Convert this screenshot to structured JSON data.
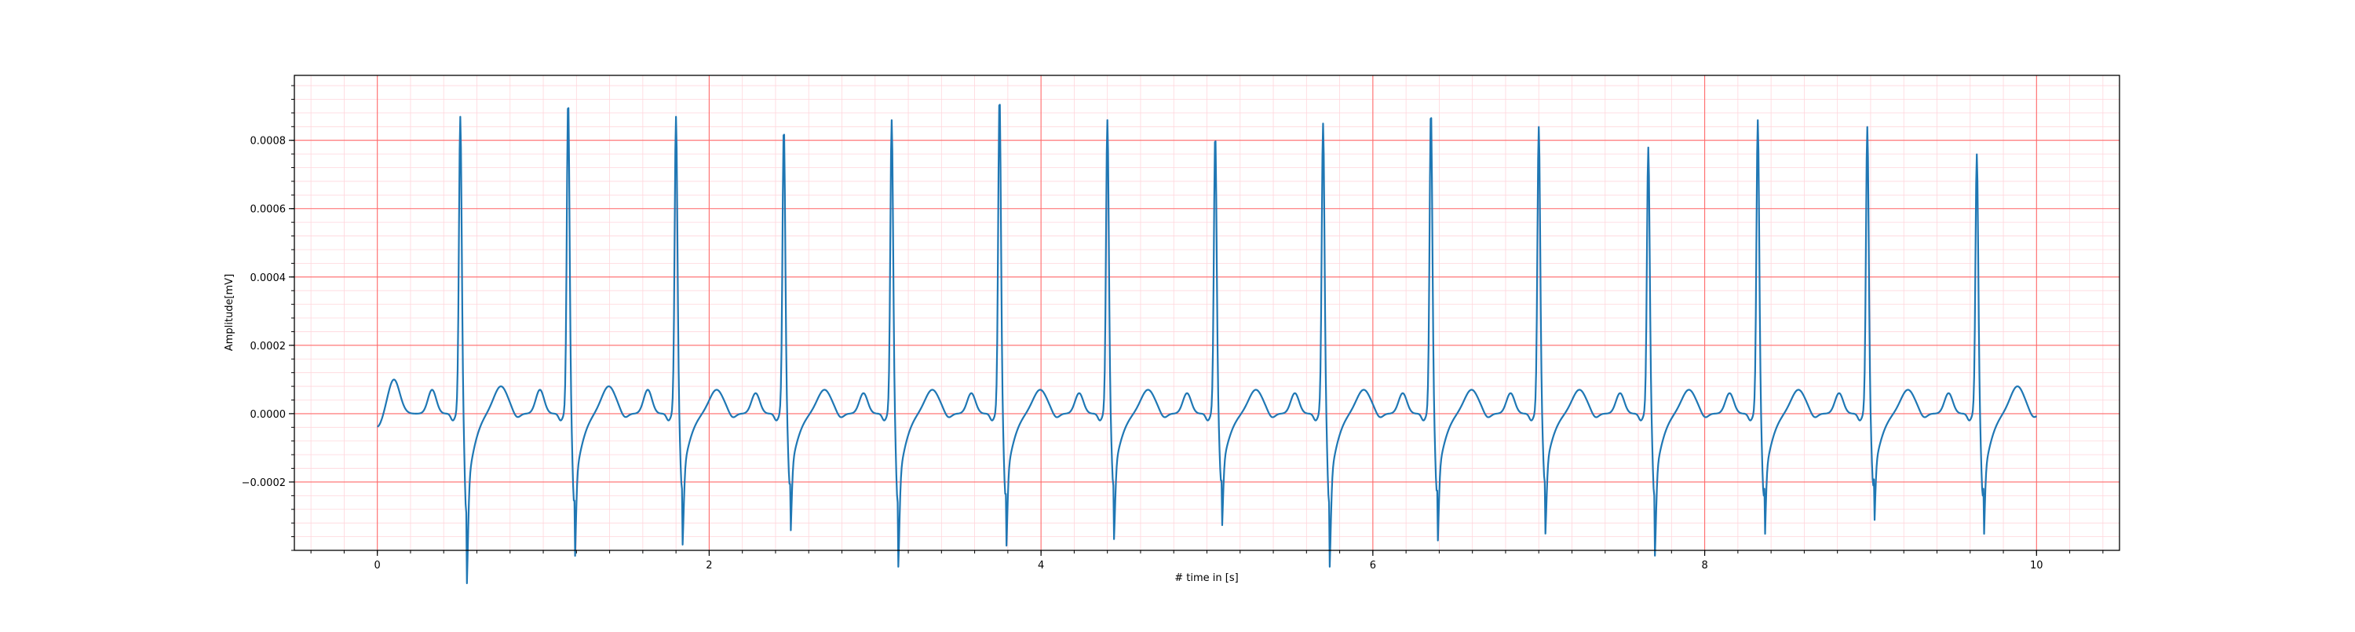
{
  "chart_data": {
    "type": "line",
    "title": "",
    "xlabel": "# time in [s]",
    "ylabel": "Amplitude[mV]",
    "xlim": [
      -0.5,
      10.5
    ],
    "ylim": [
      -0.0004,
      0.00099
    ],
    "x_ticks": [
      0,
      2,
      4,
      6,
      8,
      10
    ],
    "x_tick_labels": [
      "0",
      "2",
      "4",
      "6",
      "8",
      "10"
    ],
    "y_ticks": [
      -0.0002,
      0.0,
      0.0002,
      0.0004,
      0.0006,
      0.0008
    ],
    "y_tick_labels": [
      "−0.0002",
      "0.0000",
      "0.0002",
      "0.0004",
      "0.0006",
      "0.0008"
    ],
    "grid": {
      "major": true,
      "minor": true,
      "major_color": "#ff6b6b",
      "minor_color": "#ffd6dc",
      "x_minor_step": 0.2,
      "y_minor_step": 4e-05
    },
    "legend": "none",
    "series": [
      {
        "color": "#1f77b4",
        "sample_interval_s": 0.004,
        "duration_s": 10,
        "start_value": -5e-05,
        "beat_times": [
          0.5,
          1.15,
          1.8,
          2.45,
          3.1,
          3.75,
          4.4,
          5.05,
          5.7,
          6.35,
          7.0,
          7.66,
          8.32,
          8.98,
          9.64
        ],
        "r_peaks": [
          0.00087,
          0.00092,
          0.00087,
          0.00084,
          0.00086,
          0.00093,
          0.00086,
          0.00082,
          0.00085,
          0.00089,
          0.00084,
          0.00078,
          0.00086,
          0.00084,
          0.00076
        ],
        "s_troughs": [
          -0.00033,
          -0.0003,
          -0.00026,
          -0.00025,
          -0.0003,
          -0.00028,
          -0.00025,
          -0.00024,
          -0.0003,
          -0.00027,
          -0.00024,
          -0.00028,
          -0.00028,
          -0.00025,
          -0.00028
        ],
        "t_wave_peaks": [
          0.0001,
          8e-05,
          8e-05,
          7e-05,
          7e-05,
          7e-05,
          7e-05,
          7e-05,
          7e-05,
          7e-05,
          7e-05,
          7e-05,
          7e-05,
          7e-05,
          7e-05,
          8e-05
        ],
        "p_wave_peaks": [
          7e-05,
          7e-05,
          7e-05,
          6e-05,
          6e-05,
          6e-05,
          6e-05,
          6e-05,
          6e-05,
          6e-05,
          6e-05,
          6e-05,
          6e-05,
          6e-05,
          6e-05
        ]
      }
    ]
  }
}
